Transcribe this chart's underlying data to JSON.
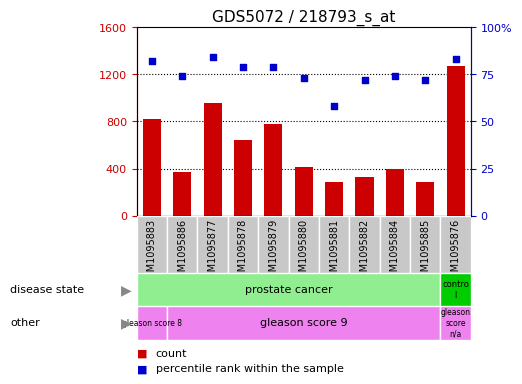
{
  "title": "GDS5072 / 218793_s_at",
  "samples": [
    "GSM1095883",
    "GSM1095886",
    "GSM1095877",
    "GSM1095878",
    "GSM1095879",
    "GSM1095880",
    "GSM1095881",
    "GSM1095882",
    "GSM1095884",
    "GSM1095885",
    "GSM1095876"
  ],
  "bar_values": [
    820,
    370,
    960,
    640,
    780,
    415,
    290,
    330,
    395,
    285,
    1270
  ],
  "dot_values": [
    82,
    74,
    84,
    79,
    79,
    73,
    58,
    72,
    74,
    72,
    83
  ],
  "bar_color": "#cc0000",
  "dot_color": "#0000cc",
  "ylim_left": [
    0,
    1600
  ],
  "ylim_right": [
    0,
    100
  ],
  "yticks_left": [
    0,
    400,
    800,
    1200,
    1600
  ],
  "yticks_right": [
    0,
    25,
    50,
    75,
    100
  ],
  "hlines": [
    400,
    800,
    1200
  ],
  "disease_state_label": "disease state",
  "disease_state_text": "prostate cancer",
  "control_text": "contro\nl",
  "disease_state_color": "#90ee90",
  "control_color": "#00cc00",
  "other_label": "other",
  "gleason8_text": "gleason score 8",
  "gleason9_text": "gleason score 9",
  "gleasonNA_text": "gleason\nscore\nn/a",
  "other_color": "#ee82ee",
  "background_color": "#ffffff",
  "tick_bg_color": "#c8c8c8",
  "legend_count": "count",
  "legend_pct": "percentile rank within the sample",
  "arrow_color": "#888888"
}
